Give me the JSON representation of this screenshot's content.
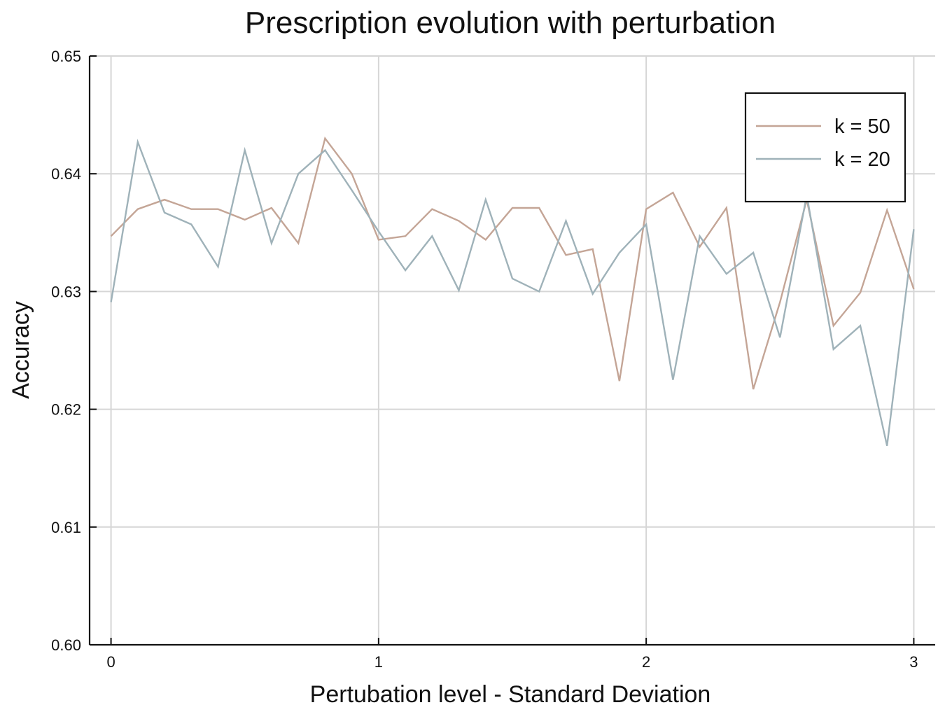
{
  "chart_data": {
    "type": "line",
    "title": "Prescription evolution with perturbation",
    "xlabel": "Pertubation level - Standard Deviation",
    "ylabel": "Accuracy",
    "xlim": [
      -0.08,
      3.08
    ],
    "ylim": [
      0.6,
      0.65
    ],
    "xticks": [
      0,
      1,
      2,
      3
    ],
    "xtick_labels": [
      "0",
      "1",
      "2",
      "3"
    ],
    "yticks": [
      0.6,
      0.61,
      0.62,
      0.63,
      0.64,
      0.65
    ],
    "ytick_labels": [
      "0.60",
      "0.61",
      "0.62",
      "0.63",
      "0.64",
      "0.65"
    ],
    "grid": true,
    "legend_position": "top-right",
    "x": [
      0.0,
      0.1,
      0.2,
      0.3,
      0.4,
      0.5,
      0.6,
      0.7,
      0.8,
      0.9,
      1.0,
      1.1,
      1.2,
      1.3,
      1.4,
      1.5,
      1.6,
      1.7,
      1.8,
      1.9,
      2.0,
      2.1,
      2.2,
      2.3,
      2.4,
      2.5,
      2.6,
      2.7,
      2.8,
      2.9,
      3.0
    ],
    "series": [
      {
        "name": "k = 50",
        "color": "#c4a596",
        "values": [
          0.6347,
          0.637,
          0.6378,
          0.637,
          0.637,
          0.6361,
          0.6371,
          0.6341,
          0.643,
          0.64,
          0.6344,
          0.6347,
          0.637,
          0.636,
          0.6344,
          0.6371,
          0.6371,
          0.6331,
          0.6336,
          0.6224,
          0.637,
          0.6384,
          0.6338,
          0.6371,
          0.6217,
          0.6291,
          0.6378,
          0.6271,
          0.6299,
          0.6369,
          0.6302
        ]
      },
      {
        "name": "k = 20",
        "color": "#9fb2b9",
        "values": [
          0.6291,
          0.6427,
          0.6367,
          0.6357,
          0.6321,
          0.642,
          0.6341,
          0.64,
          0.642,
          0.6386,
          0.6351,
          0.6318,
          0.6347,
          0.6301,
          0.6378,
          0.6311,
          0.63,
          0.636,
          0.6298,
          0.6333,
          0.6357,
          0.6225,
          0.6347,
          0.6315,
          0.6333,
          0.6261,
          0.6382,
          0.6251,
          0.6271,
          0.6169,
          0.6353
        ]
      }
    ]
  }
}
